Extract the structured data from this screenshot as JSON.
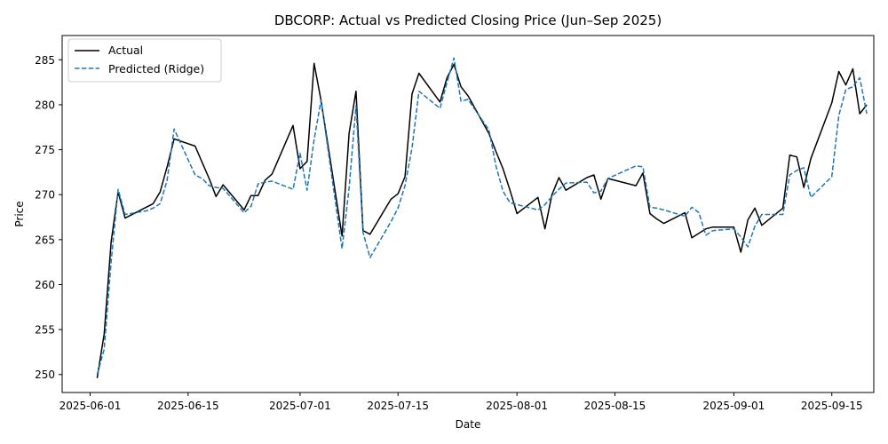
{
  "chart_data": {
    "type": "line",
    "title": "DBCORP: Actual vs Predicted Closing Price (Jun–Sep 2025)",
    "xlabel": "Date",
    "ylabel": "Price",
    "x_ticks": [
      "2025-06-01",
      "2025-06-15",
      "2025-07-01",
      "2025-07-15",
      "2025-08-01",
      "2025-08-15",
      "2025-09-01",
      "2025-09-15"
    ],
    "y_ticks": [
      250,
      255,
      260,
      265,
      270,
      275,
      280,
      285
    ],
    "xlim": [
      "2025-05-28",
      "2025-09-21"
    ],
    "ylim": [
      248,
      287.7
    ],
    "legend_position": "top-left",
    "grid": false,
    "series": [
      {
        "name": "Actual",
        "color": "#000000",
        "style": "solid",
        "points": [
          [
            "2025-06-02",
            249.6
          ],
          [
            "2025-06-03",
            254.5
          ],
          [
            "2025-06-04",
            264.8
          ],
          [
            "2025-06-05",
            270.3
          ],
          [
            "2025-06-06",
            267.4
          ],
          [
            "2025-06-09",
            268.6
          ],
          [
            "2025-06-10",
            269.0
          ],
          [
            "2025-06-11",
            270.3
          ],
          [
            "2025-06-12",
            273.1
          ],
          [
            "2025-06-13",
            276.2
          ],
          [
            "2025-06-16",
            275.4
          ],
          [
            "2025-06-17",
            273.6
          ],
          [
            "2025-06-18",
            271.8
          ],
          [
            "2025-06-19",
            269.8
          ],
          [
            "2025-06-20",
            271.1
          ],
          [
            "2025-06-23",
            268.3
          ],
          [
            "2025-06-24",
            269.9
          ],
          [
            "2025-06-25",
            269.9
          ],
          [
            "2025-06-26",
            271.6
          ],
          [
            "2025-06-27",
            272.3
          ],
          [
            "2025-06-30",
            277.7
          ],
          [
            "2025-07-01",
            272.9
          ],
          [
            "2025-07-02",
            273.7
          ],
          [
            "2025-07-03",
            284.6
          ],
          [
            "2025-07-04",
            280.5
          ],
          [
            "2025-07-07",
            265.4
          ],
          [
            "2025-07-08",
            276.8
          ],
          [
            "2025-07-09",
            281.5
          ],
          [
            "2025-07-10",
            266.0
          ],
          [
            "2025-07-11",
            265.6
          ],
          [
            "2025-07-14",
            269.5
          ],
          [
            "2025-07-15",
            270.1
          ],
          [
            "2025-07-16",
            272.0
          ],
          [
            "2025-07-17",
            281.2
          ],
          [
            "2025-07-18",
            283.5
          ],
          [
            "2025-07-21",
            280.3
          ],
          [
            "2025-07-22",
            283.0
          ],
          [
            "2025-07-23",
            284.5
          ],
          [
            "2025-07-24",
            282.0
          ],
          [
            "2025-07-25",
            281.0
          ],
          [
            "2025-07-28",
            276.8
          ],
          [
            "2025-07-29",
            274.8
          ],
          [
            "2025-07-30",
            272.9
          ],
          [
            "2025-07-31",
            270.5
          ],
          [
            "2025-08-01",
            267.9
          ],
          [
            "2025-08-04",
            269.7
          ],
          [
            "2025-08-05",
            266.2
          ],
          [
            "2025-08-06",
            270.0
          ],
          [
            "2025-08-07",
            271.9
          ],
          [
            "2025-08-08",
            270.5
          ],
          [
            "2025-08-11",
            271.9
          ],
          [
            "2025-08-12",
            272.2
          ],
          [
            "2025-08-13",
            269.5
          ],
          [
            "2025-08-14",
            271.8
          ],
          [
            "2025-08-18",
            271.0
          ],
          [
            "2025-08-19",
            272.4
          ],
          [
            "2025-08-20",
            267.9
          ],
          [
            "2025-08-21",
            267.3
          ],
          [
            "2025-08-22",
            266.8
          ],
          [
            "2025-08-25",
            268.0
          ],
          [
            "2025-08-26",
            265.2
          ],
          [
            "2025-08-27",
            265.7
          ],
          [
            "2025-08-28",
            266.2
          ],
          [
            "2025-08-29",
            266.4
          ],
          [
            "2025-09-01",
            266.4
          ],
          [
            "2025-09-02",
            263.6
          ],
          [
            "2025-09-03",
            267.2
          ],
          [
            "2025-09-04",
            268.5
          ],
          [
            "2025-09-05",
            266.6
          ],
          [
            "2025-09-08",
            268.5
          ],
          [
            "2025-09-09",
            274.4
          ],
          [
            "2025-09-10",
            274.2
          ],
          [
            "2025-09-11",
            270.8
          ],
          [
            "2025-09-12",
            274.0
          ],
          [
            "2025-09-15",
            280.2
          ],
          [
            "2025-09-16",
            283.7
          ],
          [
            "2025-09-17",
            282.2
          ],
          [
            "2025-09-18",
            284.0
          ],
          [
            "2025-09-19",
            279.0
          ],
          [
            "2025-09-20",
            280.0
          ]
        ]
      },
      {
        "name": "Predicted (Ridge)",
        "color": "#1f77b4",
        "style": "dashed",
        "points": [
          [
            "2025-06-02",
            250.0
          ],
          [
            "2025-06-03",
            252.8
          ],
          [
            "2025-06-04",
            262.6
          ],
          [
            "2025-06-05",
            270.6
          ],
          [
            "2025-06-06",
            267.8
          ],
          [
            "2025-06-09",
            268.2
          ],
          [
            "2025-06-10",
            268.5
          ],
          [
            "2025-06-11",
            269.0
          ],
          [
            "2025-06-12",
            271.6
          ],
          [
            "2025-06-13",
            277.3
          ],
          [
            "2025-06-16",
            272.2
          ],
          [
            "2025-06-17",
            271.8
          ],
          [
            "2025-06-18",
            271.0
          ],
          [
            "2025-06-19",
            270.8
          ],
          [
            "2025-06-20",
            270.7
          ],
          [
            "2025-06-23",
            268.0
          ],
          [
            "2025-06-24",
            268.7
          ],
          [
            "2025-06-25",
            271.2
          ],
          [
            "2025-06-26",
            271.4
          ],
          [
            "2025-06-27",
            271.5
          ],
          [
            "2025-06-30",
            270.6
          ],
          [
            "2025-07-01",
            274.6
          ],
          [
            "2025-07-02",
            270.5
          ],
          [
            "2025-07-03",
            276.1
          ],
          [
            "2025-07-04",
            280.5
          ],
          [
            "2025-07-07",
            264.0
          ],
          [
            "2025-07-08",
            270.7
          ],
          [
            "2025-07-09",
            279.9
          ],
          [
            "2025-07-10",
            265.8
          ],
          [
            "2025-07-11",
            263.0
          ],
          [
            "2025-07-14",
            267.0
          ],
          [
            "2025-07-15",
            268.5
          ],
          [
            "2025-07-16",
            271.0
          ],
          [
            "2025-07-17",
            275.2
          ],
          [
            "2025-07-18",
            281.5
          ],
          [
            "2025-07-21",
            279.6
          ],
          [
            "2025-07-22",
            282.5
          ],
          [
            "2025-07-23",
            285.2
          ],
          [
            "2025-07-24",
            280.4
          ],
          [
            "2025-07-25",
            280.6
          ],
          [
            "2025-07-28",
            277.2
          ],
          [
            "2025-07-29",
            273.2
          ],
          [
            "2025-07-30",
            270.4
          ],
          [
            "2025-07-31",
            269.1
          ],
          [
            "2025-08-01",
            268.9
          ],
          [
            "2025-08-04",
            268.3
          ],
          [
            "2025-08-05",
            268.9
          ],
          [
            "2025-08-06",
            269.8
          ],
          [
            "2025-08-07",
            270.6
          ],
          [
            "2025-08-08",
            271.3
          ],
          [
            "2025-08-11",
            271.4
          ],
          [
            "2025-08-12",
            270.2
          ],
          [
            "2025-08-13",
            270.4
          ],
          [
            "2025-08-14",
            271.8
          ],
          [
            "2025-08-18",
            273.2
          ],
          [
            "2025-08-19",
            273.1
          ],
          [
            "2025-08-20",
            268.6
          ],
          [
            "2025-08-21",
            268.5
          ],
          [
            "2025-08-22",
            268.3
          ],
          [
            "2025-08-25",
            267.6
          ],
          [
            "2025-08-26",
            268.6
          ],
          [
            "2025-08-27",
            268.0
          ],
          [
            "2025-08-28",
            265.5
          ],
          [
            "2025-08-29",
            266.0
          ],
          [
            "2025-09-01",
            266.2
          ],
          [
            "2025-09-02",
            265.3
          ],
          [
            "2025-09-03",
            264.2
          ],
          [
            "2025-09-04",
            266.5
          ],
          [
            "2025-09-05",
            267.8
          ],
          [
            "2025-09-08",
            267.8
          ],
          [
            "2025-09-09",
            272.2
          ],
          [
            "2025-09-10",
            272.7
          ],
          [
            "2025-09-11",
            273.0
          ],
          [
            "2025-09-12",
            269.7
          ],
          [
            "2025-09-15",
            272.0
          ],
          [
            "2025-09-16",
            278.8
          ],
          [
            "2025-09-17",
            281.7
          ],
          [
            "2025-09-18",
            282.0
          ],
          [
            "2025-09-19",
            283.0
          ],
          [
            "2025-09-20",
            279.0
          ]
        ]
      }
    ]
  }
}
